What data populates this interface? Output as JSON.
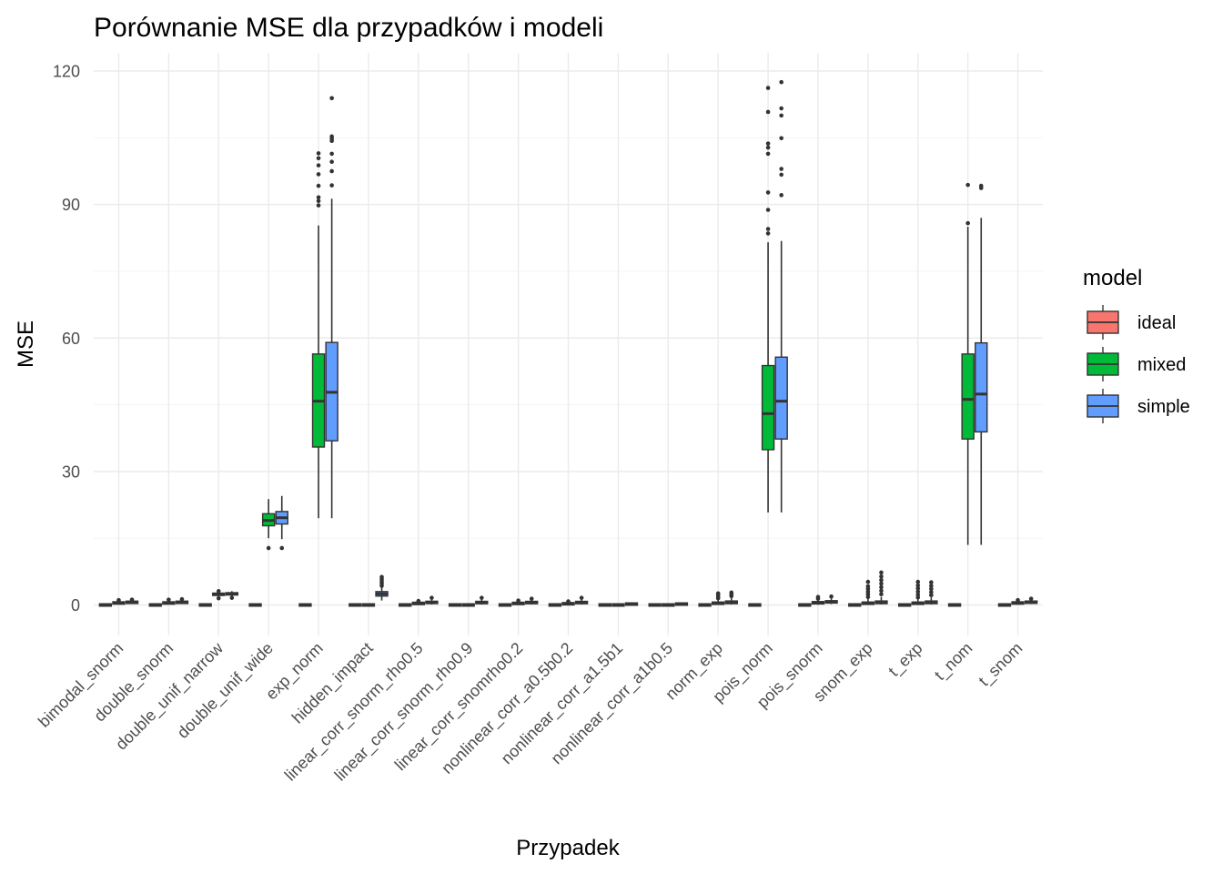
{
  "chart_data": {
    "type": "boxplot",
    "title": "Porównanie MSE dla przypadków i modeli",
    "xlabel": "Przypadek",
    "ylabel": "MSE",
    "ylim": [
      -5,
      122
    ],
    "yticks": [
      0,
      30,
      60,
      90,
      120
    ],
    "grid": true,
    "legend": {
      "title": "model",
      "position": "right"
    },
    "categories": [
      "bimodal_snorm",
      "double_snorm",
      "double_unif_narrow",
      "double_unif_wide",
      "exp_norm",
      "hidden_impact",
      "linear_corr_snorm_rho0.5",
      "linear_corr_snorm_rho0.9",
      "linear_corr_snomrho0.2",
      "nonlinear_corr_a0.5b0.2",
      "nonlinear_corr_a1.5b1",
      "nonlinear_corr_a1b0.5",
      "norm_exp",
      "pois_norm",
      "pois_snorm",
      "snom_exp",
      "t_exp",
      "t_nom",
      "t_snom"
    ],
    "series": [
      {
        "name": "ideal",
        "color": "#F8766D",
        "boxes": [
          {
            "min": 0,
            "q1": 0,
            "median": 0,
            "q3": 0,
            "max": 0,
            "outliers": []
          },
          {
            "min": 0,
            "q1": 0,
            "median": 0,
            "q3": 0,
            "max": 0,
            "outliers": []
          },
          {
            "min": 0,
            "q1": 0,
            "median": 0,
            "q3": 0,
            "max": 0,
            "outliers": []
          },
          {
            "min": 0,
            "q1": 0,
            "median": 0,
            "q3": 0,
            "max": 0,
            "outliers": []
          },
          {
            "min": 0,
            "q1": 0,
            "median": 0,
            "q3": 0,
            "max": 0,
            "outliers": []
          },
          {
            "min": 0,
            "q1": 0,
            "median": 0,
            "q3": 0,
            "max": 0,
            "outliers": []
          },
          {
            "min": 0,
            "q1": 0,
            "median": 0,
            "q3": 0,
            "max": 0,
            "outliers": []
          },
          {
            "min": 0,
            "q1": 0,
            "median": 0,
            "q3": 0,
            "max": 0,
            "outliers": []
          },
          {
            "min": 0,
            "q1": 0,
            "median": 0,
            "q3": 0,
            "max": 0,
            "outliers": []
          },
          {
            "min": 0,
            "q1": 0,
            "median": 0,
            "q3": 0,
            "max": 0,
            "outliers": []
          },
          {
            "min": 0,
            "q1": 0,
            "median": 0,
            "q3": 0,
            "max": 0,
            "outliers": []
          },
          {
            "min": 0,
            "q1": 0,
            "median": 0,
            "q3": 0,
            "max": 0,
            "outliers": []
          },
          {
            "min": 0,
            "q1": 0,
            "median": 0,
            "q3": 0,
            "max": 0,
            "outliers": []
          },
          {
            "min": 0,
            "q1": 0,
            "median": 0,
            "q3": 0,
            "max": 0,
            "outliers": []
          },
          {
            "min": 0,
            "q1": 0,
            "median": 0,
            "q3": 0,
            "max": 0,
            "outliers": []
          },
          {
            "min": 0,
            "q1": 0,
            "median": 0,
            "q3": 0,
            "max": 0,
            "outliers": []
          },
          {
            "min": 0,
            "q1": 0,
            "median": 0,
            "q3": 0,
            "max": 0,
            "outliers": []
          },
          {
            "min": 0,
            "q1": 0,
            "median": 0,
            "q3": 0,
            "max": 0,
            "outliers": []
          },
          {
            "min": 0,
            "q1": 0,
            "median": 0,
            "q3": 0,
            "max": 0,
            "outliers": []
          }
        ]
      },
      {
        "name": "mixed",
        "color": "#00BA38",
        "boxes": [
          {
            "min": 0.1,
            "q1": 0.3,
            "median": 0.45,
            "q3": 0.6,
            "max": 1.0,
            "outliers": [
              1.1
            ]
          },
          {
            "min": 0.1,
            "q1": 0.3,
            "median": 0.45,
            "q3": 0.6,
            "max": 1.0,
            "outliers": [
              1.2
            ]
          },
          {
            "min": 1.7,
            "q1": 2.2,
            "median": 2.4,
            "q3": 2.6,
            "max": 3.0,
            "outliers": [
              1.5,
              3.1
            ]
          },
          {
            "min": 15.0,
            "q1": 17.8,
            "median": 19.0,
            "q3": 20.5,
            "max": 23.8,
            "outliers": [
              12.8
            ]
          },
          {
            "min": 19.5,
            "q1": 35.5,
            "median": 45.8,
            "q3": 56.4,
            "max": 85.3,
            "outliers": [
              89.8,
              90.8,
              91.6,
              94.2,
              96.8,
              98.8,
              100.4,
              101.5
            ]
          },
          {
            "min": 0,
            "q1": 0,
            "median": 0,
            "q3": 0,
            "max": 0,
            "outliers": []
          },
          {
            "min": 0.05,
            "q1": 0.2,
            "median": 0.3,
            "q3": 0.5,
            "max": 0.8,
            "outliers": [
              0.9
            ]
          },
          {
            "min": 0,
            "q1": 0,
            "median": 0,
            "q3": 0,
            "max": 0,
            "outliers": []
          },
          {
            "min": 0.05,
            "q1": 0.2,
            "median": 0.35,
            "q3": 0.5,
            "max": 0.9,
            "outliers": [
              1.0
            ]
          },
          {
            "min": 0.05,
            "q1": 0.15,
            "median": 0.25,
            "q3": 0.4,
            "max": 0.7,
            "outliers": [
              0.8
            ]
          },
          {
            "min": 0,
            "q1": 0,
            "median": 0,
            "q3": 0,
            "max": 0,
            "outliers": []
          },
          {
            "min": 0,
            "q1": 0,
            "median": 0,
            "q3": 0,
            "max": 0,
            "outliers": []
          },
          {
            "min": 0.05,
            "q1": 0.2,
            "median": 0.3,
            "q3": 0.6,
            "max": 1.2,
            "outliers": [
              1.5,
              1.9,
              2.3,
              2.6
            ]
          },
          {
            "min": 20.8,
            "q1": 34.9,
            "median": 43.0,
            "q3": 53.8,
            "max": 81.5,
            "outliers": [
              83.5,
              84.5,
              88.8,
              92.7,
              101.4,
              102.8,
              103.7,
              110.8,
              116.2
            ]
          },
          {
            "min": 0.05,
            "q1": 0.3,
            "median": 0.45,
            "q3": 0.7,
            "max": 1.2,
            "outliers": [
              1.4,
              1.8
            ]
          },
          {
            "min": 0.05,
            "q1": 0.2,
            "median": 0.3,
            "q3": 0.6,
            "max": 1.5,
            "outliers": [
              1.8,
              2.4,
              3.0,
              3.6,
              4.2,
              5.2
            ]
          },
          {
            "min": 0.05,
            "q1": 0.2,
            "median": 0.3,
            "q3": 0.6,
            "max": 1.4,
            "outliers": [
              1.7,
              2.3,
              3.0,
              3.7,
              4.4,
              5.2
            ]
          },
          {
            "min": 13.5,
            "q1": 37.3,
            "median": 46.2,
            "q3": 56.4,
            "max": 85.0,
            "outliers": [
              85.8,
              94.4
            ]
          },
          {
            "min": 0.05,
            "q1": 0.3,
            "median": 0.45,
            "q3": 0.6,
            "max": 1.0,
            "outliers": [
              1.1
            ]
          }
        ]
      },
      {
        "name": "simple",
        "color": "#619CFF",
        "boxes": [
          {
            "min": 0.2,
            "q1": 0.45,
            "median": 0.6,
            "q3": 0.75,
            "max": 1.1,
            "outliers": [
              1.2
            ]
          },
          {
            "min": 0.2,
            "q1": 0.45,
            "median": 0.6,
            "q3": 0.75,
            "max": 1.1,
            "outliers": [
              1.3
            ]
          },
          {
            "min": 1.8,
            "q1": 2.3,
            "median": 2.5,
            "q3": 2.7,
            "max": 3.1,
            "outliers": [
              1.6
            ]
          },
          {
            "min": 14.8,
            "q1": 18.2,
            "median": 19.6,
            "q3": 21.0,
            "max": 24.5,
            "outliers": [
              12.8
            ]
          },
          {
            "min": 19.5,
            "q1": 36.9,
            "median": 47.8,
            "q3": 59.0,
            "max": 91.3,
            "outliers": [
              94.3,
              97.5,
              99.6,
              101.4,
              104.3,
              104.8,
              105.3,
              113.9
            ]
          },
          {
            "min": 1.0,
            "q1": 2.0,
            "median": 2.5,
            "q3": 3.0,
            "max": 3.9,
            "outliers": [
              4.3,
              4.8,
              5.3,
              5.8,
              6.3
            ]
          },
          {
            "min": 0.1,
            "q1": 0.35,
            "median": 0.55,
            "q3": 0.8,
            "max": 1.3,
            "outliers": [
              1.6
            ]
          },
          {
            "min": 0.1,
            "q1": 0.3,
            "median": 0.5,
            "q3": 0.8,
            "max": 1.3,
            "outliers": [
              1.6
            ]
          },
          {
            "min": 0.1,
            "q1": 0.35,
            "median": 0.5,
            "q3": 0.75,
            "max": 1.2,
            "outliers": [
              1.4
            ]
          },
          {
            "min": 0.1,
            "q1": 0.3,
            "median": 0.5,
            "q3": 0.8,
            "max": 1.3,
            "outliers": [
              1.6
            ]
          },
          {
            "min": 0.05,
            "q1": 0.1,
            "median": 0.2,
            "q3": 0.3,
            "max": 0.5,
            "outliers": []
          },
          {
            "min": 0.05,
            "q1": 0.1,
            "median": 0.2,
            "q3": 0.3,
            "max": 0.5,
            "outliers": []
          },
          {
            "min": 0.1,
            "q1": 0.3,
            "median": 0.5,
            "q3": 0.9,
            "max": 1.7,
            "outliers": [
              2.0,
              2.4,
              2.8
            ]
          },
          {
            "min": 20.8,
            "q1": 37.3,
            "median": 45.8,
            "q3": 55.7,
            "max": 81.8,
            "outliers": [
              92.1,
              96.7,
              98.0,
              104.9,
              110.0,
              111.6,
              117.5
            ]
          },
          {
            "min": 0.2,
            "q1": 0.45,
            "median": 0.7,
            "q3": 0.95,
            "max": 1.5,
            "outliers": [
              1.9
            ]
          },
          {
            "min": 0.1,
            "q1": 0.3,
            "median": 0.5,
            "q3": 0.9,
            "max": 1.8,
            "outliers": [
              2.4,
              3.2,
              4.0,
              4.8,
              5.6,
              6.4,
              7.3
            ]
          },
          {
            "min": 0.1,
            "q1": 0.3,
            "median": 0.5,
            "q3": 0.9,
            "max": 1.7,
            "outliers": [
              2.2,
              2.9,
              3.6,
              4.3,
              5.1
            ]
          },
          {
            "min": 13.5,
            "q1": 38.9,
            "median": 47.4,
            "q3": 58.9,
            "max": 87.0,
            "outliers": [
              93.7,
              94.2
            ]
          },
          {
            "min": 0.2,
            "q1": 0.45,
            "median": 0.6,
            "q3": 0.8,
            "max": 1.2,
            "outliers": [
              1.4
            ]
          }
        ]
      }
    ]
  }
}
